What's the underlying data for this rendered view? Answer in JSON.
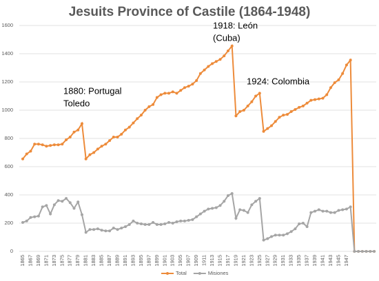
{
  "chart_data": {
    "type": "line",
    "title": "Jesuits Province of Castile (1864-1948)",
    "categories": [
      "1865",
      null,
      "1867",
      null,
      "1869",
      null,
      "1871",
      null,
      "1873",
      null,
      "1875",
      null,
      "1877",
      null,
      "1879",
      null,
      "1881",
      null,
      "1883",
      null,
      "1885",
      null,
      "1887",
      null,
      "1889",
      null,
      "1891",
      null,
      "1893",
      null,
      "1895",
      null,
      "1897",
      null,
      "1899",
      null,
      "1901",
      null,
      "1903",
      null,
      "1905",
      null,
      "1907",
      null,
      "1909",
      null,
      "1911",
      null,
      "1913",
      null,
      "1915",
      null,
      "1917",
      null,
      "1919",
      null,
      "1921",
      null,
      "1923",
      null,
      "1925",
      null,
      "1927",
      null,
      "1929",
      null,
      "1931",
      null,
      "1933",
      null,
      "1935",
      null,
      "1937",
      null,
      "1939",
      null,
      "1941",
      null,
      "1943",
      null,
      "1945",
      null,
      "1947",
      null,
      null,
      null,
      null,
      null,
      null,
      null
    ],
    "series": [
      {
        "name": "Total",
        "color": "#ed8b3a",
        "values": [
          655,
          690,
          710,
          760,
          760,
          755,
          745,
          750,
          755,
          755,
          760,
          790,
          810,
          845,
          860,
          905,
          655,
          685,
          700,
          725,
          745,
          760,
          785,
          810,
          810,
          830,
          860,
          880,
          910,
          940,
          965,
          1000,
          1025,
          1040,
          1090,
          1110,
          1120,
          1120,
          1130,
          1120,
          1140,
          1160,
          1170,
          1185,
          1210,
          1260,
          1285,
          1310,
          1330,
          1345,
          1360,
          1385,
          1420,
          1455,
          960,
          990,
          1000,
          1030,
          1060,
          1100,
          1120,
          850,
          870,
          890,
          920,
          950,
          965,
          970,
          990,
          1005,
          1020,
          1030,
          1050,
          1070,
          1075,
          1080,
          1085,
          1110,
          1160,
          1195,
          1215,
          1260,
          1320,
          1355,
          0,
          0,
          0,
          0,
          0,
          0
        ]
      },
      {
        "name": "Misiones",
        "color": "#a5a5a5",
        "values": [
          205,
          215,
          240,
          245,
          250,
          315,
          325,
          265,
          330,
          360,
          355,
          375,
          345,
          305,
          350,
          260,
          135,
          155,
          155,
          160,
          150,
          145,
          145,
          165,
          155,
          165,
          175,
          190,
          215,
          200,
          195,
          190,
          190,
          205,
          190,
          190,
          195,
          205,
          200,
          210,
          215,
          215,
          220,
          225,
          245,
          265,
          285,
          300,
          305,
          310,
          325,
          355,
          395,
          410,
          235,
          295,
          290,
          275,
          330,
          355,
          375,
          80,
          90,
          105,
          115,
          115,
          115,
          125,
          140,
          160,
          195,
          200,
          175,
          275,
          285,
          295,
          285,
          285,
          275,
          275,
          290,
          295,
          300,
          315,
          0,
          0,
          0,
          0,
          0,
          0
        ]
      }
    ],
    "ylim": [
      0,
      1600
    ],
    "yticks": [
      0,
      200,
      400,
      600,
      800,
      1000,
      1200,
      1400,
      1600
    ],
    "grid": true,
    "legend": "bottom",
    "annotations": [
      [
        "1880: Portugal",
        "Toledo"
      ],
      [
        "1918: León",
        "(Cuba)"
      ],
      [
        "1924: Colombia"
      ]
    ]
  }
}
